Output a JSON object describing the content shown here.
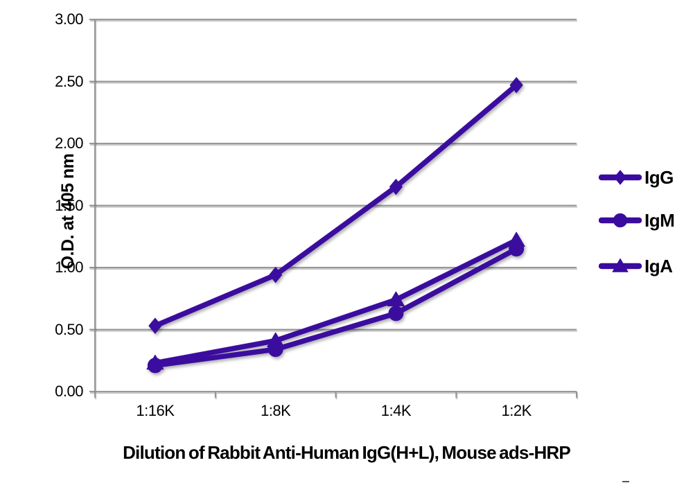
{
  "chart_data": {
    "type": "line",
    "title": "",
    "xlabel": "Dilution of Rabbit Anti-Human IgG(H+L), Mouse ads-HRP",
    "ylabel": "O.D. at 405 nm",
    "categories": [
      "1:16K",
      "1:8K",
      "1:4K",
      "1:2K"
    ],
    "series": [
      {
        "name": "IgG",
        "marker": "diamond",
        "values": [
          0.53,
          0.94,
          1.65,
          2.47
        ]
      },
      {
        "name": "IgM",
        "marker": "circle",
        "values": [
          0.21,
          0.34,
          0.63,
          1.15
        ]
      },
      {
        "name": "IgA",
        "marker": "triangle",
        "values": [
          0.23,
          0.41,
          0.74,
          1.22
        ]
      }
    ],
    "ylim": [
      0,
      3.0
    ],
    "ytick_step": 0.5,
    "ytick_labels": [
      "0.00",
      "0.50",
      "1.00",
      "1.50",
      "2.00",
      "2.50",
      "3.00"
    ],
    "grid": true,
    "legend_position": "right",
    "colors": {
      "series": "#3A0B9E",
      "grid": "#8C8C8C",
      "axis": "#8C8C8C",
      "text": "#000000",
      "background": "#FFFFFF"
    }
  }
}
